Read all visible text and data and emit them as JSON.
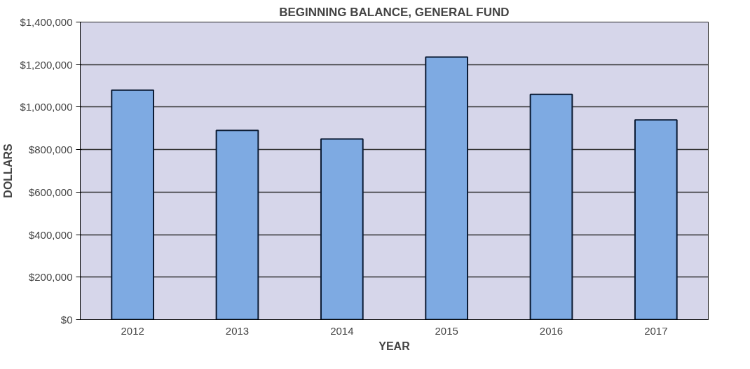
{
  "chart_data": {
    "type": "bar",
    "title": "BEGINNING BALANCE, GENERAL FUND",
    "xlabel": "YEAR",
    "ylabel": "DOLLARS",
    "categories": [
      "2012",
      "2013",
      "2014",
      "2015",
      "2016",
      "2017"
    ],
    "values": [
      1080000,
      890000,
      850000,
      1235000,
      1060000,
      940000
    ],
    "color": "#7eaae2",
    "ylim": [
      0,
      1400000
    ],
    "yticks": [
      {
        "value": 0,
        "label": "$0"
      },
      {
        "value": 200000,
        "label": "$200,000"
      },
      {
        "value": 400000,
        "label": "$400,000"
      },
      {
        "value": 600000,
        "label": "$600,000"
      },
      {
        "value": 800000,
        "label": "$800,000"
      },
      {
        "value": 1000000,
        "label": "$1,000,000"
      },
      {
        "value": 1200000,
        "label": "$1,200,000"
      },
      {
        "value": 1400000,
        "label": "$1,400,000"
      }
    ],
    "grid": "y"
  }
}
